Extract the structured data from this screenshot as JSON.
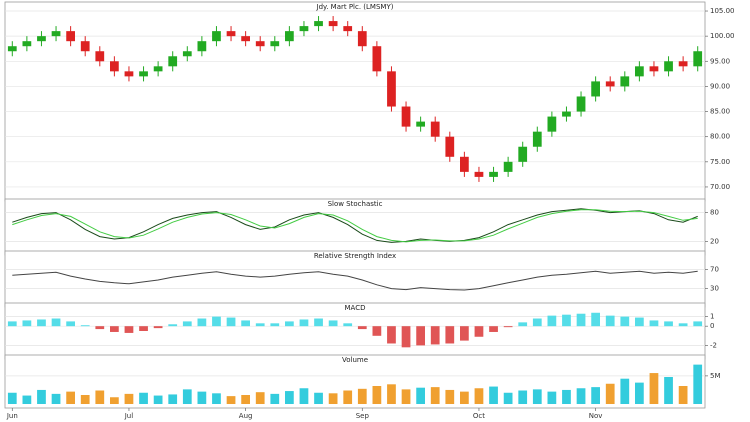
{
  "chart_data": [
    {
      "type": "candlestick",
      "title": "Jdy. Mart Plc. (LMSMY)",
      "categories": [
        "Jun",
        null,
        null,
        null,
        null,
        null,
        null,
        null,
        "Jul",
        null,
        null,
        null,
        null,
        null,
        null,
        null,
        "Aug",
        null,
        null,
        null,
        null,
        null,
        null,
        null,
        "Sep",
        null,
        null,
        null,
        null,
        null,
        null,
        null,
        "Oct",
        null,
        null,
        null,
        null,
        null,
        null,
        null,
        "Nov",
        null,
        null,
        null,
        null,
        null,
        null,
        null
      ],
      "open": [
        97,
        98,
        99,
        100,
        101,
        99,
        97,
        95,
        93,
        92,
        93,
        94,
        96,
        97,
        99,
        101,
        100,
        99,
        98,
        99,
        101,
        102,
        103,
        102,
        101,
        98,
        93,
        86,
        82,
        83,
        80,
        76,
        73,
        72,
        73,
        75,
        78,
        81,
        84,
        85,
        88,
        91,
        90,
        92,
        94,
        93,
        95,
        94
      ],
      "high": [
        99,
        100,
        101,
        102,
        102,
        100,
        98,
        96,
        94,
        94,
        95,
        97,
        98,
        100,
        102,
        102,
        101,
        100,
        100,
        102,
        103,
        104,
        104,
        103,
        102,
        99,
        94,
        87,
        84,
        84,
        81,
        77,
        74,
        74,
        76,
        79,
        82,
        85,
        86,
        89,
        92,
        92,
        93,
        95,
        95,
        96,
        96,
        98
      ],
      "low": [
        96,
        97,
        98,
        99,
        98,
        96,
        94,
        92,
        91,
        91,
        92,
        93,
        95,
        96,
        98,
        99,
        98,
        97,
        97,
        98,
        100,
        101,
        101,
        100,
        97,
        92,
        85,
        81,
        81,
        79,
        75,
        72,
        71,
        71,
        72,
        74,
        77,
        80,
        83,
        84,
        87,
        89,
        89,
        91,
        92,
        92,
        93,
        93
      ],
      "close": [
        98,
        99,
        100,
        101,
        99,
        97,
        95,
        93,
        92,
        93,
        94,
        96,
        97,
        99,
        101,
        100,
        99,
        98,
        99,
        101,
        102,
        103,
        102,
        101,
        98,
        93,
        86,
        82,
        83,
        80,
        76,
        73,
        72,
        73,
        75,
        78,
        81,
        84,
        85,
        88,
        91,
        90,
        92,
        94,
        93,
        95,
        94,
        97
      ],
      "up_color": "#22aa22",
      "down_color": "#dd2222",
      "ylim": [
        68,
        106
      ],
      "yticks": [
        {
          "value": 70,
          "label": "70.00"
        },
        {
          "value": 75,
          "label": "75.00"
        },
        {
          "value": 80,
          "label": "80.00"
        },
        {
          "value": 85,
          "label": "85.00"
        },
        {
          "value": 90,
          "label": "90.00"
        },
        {
          "value": 95,
          "label": "95.00"
        },
        {
          "value": 100,
          "label": "100.00"
        },
        {
          "value": 105,
          "label": "105.00"
        }
      ],
      "grid": true
    },
    {
      "type": "line",
      "title": "Slow Stochastic",
      "series": [
        {
          "color": "#1a4a1a",
          "values": [
            60,
            70,
            78,
            80,
            65,
            45,
            30,
            25,
            28,
            40,
            55,
            68,
            75,
            80,
            82,
            70,
            55,
            45,
            50,
            65,
            75,
            80,
            70,
            55,
            35,
            22,
            18,
            20,
            25,
            22,
            20,
            22,
            28,
            40,
            55,
            65,
            75,
            82,
            85,
            88,
            85,
            80,
            82,
            84,
            78,
            65,
            60,
            72
          ]
        },
        {
          "color": "#44cc44",
          "values": [
            55,
            65,
            74,
            78,
            72,
            56,
            40,
            30,
            27,
            33,
            46,
            60,
            70,
            77,
            80,
            76,
            65,
            52,
            48,
            57,
            70,
            78,
            75,
            63,
            45,
            30,
            22,
            19,
            22,
            23,
            21,
            21,
            25,
            33,
            46,
            58,
            70,
            78,
            83,
            86,
            86,
            83,
            82,
            83,
            80,
            72,
            64,
            68
          ]
        }
      ],
      "ylim": [
        0,
        100
      ],
      "yticks": [
        20,
        80
      ],
      "grid": true
    },
    {
      "type": "line",
      "title": "Relative Strength Index",
      "series": [
        {
          "color": "#444444",
          "values": [
            58,
            60,
            62,
            64,
            56,
            50,
            45,
            42,
            40,
            44,
            48,
            54,
            58,
            62,
            65,
            60,
            56,
            54,
            56,
            60,
            63,
            65,
            60,
            56,
            48,
            38,
            30,
            28,
            32,
            30,
            28,
            27,
            30,
            36,
            42,
            48,
            54,
            58,
            60,
            63,
            66,
            62,
            64,
            66,
            62,
            64,
            62,
            66
          ]
        }
      ],
      "ylim": [
        0,
        100
      ],
      "yticks": [
        30,
        70
      ],
      "grid": true
    },
    {
      "type": "bar",
      "title": "MACD",
      "values": [
        0.5,
        0.6,
        0.7,
        0.8,
        0.5,
        0.1,
        -0.3,
        -0.6,
        -0.7,
        -0.5,
        -0.2,
        0.2,
        0.5,
        0.8,
        1.0,
        0.9,
        0.6,
        0.3,
        0.3,
        0.5,
        0.7,
        0.8,
        0.6,
        0.3,
        -0.3,
        -1.0,
        -1.8,
        -2.2,
        -2.0,
        -1.9,
        -1.8,
        -1.5,
        -1.1,
        -0.6,
        -0.1,
        0.4,
        0.8,
        1.1,
        1.2,
        1.3,
        1.4,
        1.1,
        1.0,
        0.9,
        0.6,
        0.5,
        0.3,
        0.5
      ],
      "up_color": "#55dde8",
      "down_color": "#e05555",
      "ylim": [
        -3,
        2
      ],
      "yticks": [
        -2,
        0,
        1
      ],
      "grid": true
    },
    {
      "type": "volume",
      "title": "Volume",
      "values": [
        2,
        1.5,
        2.5,
        1.8,
        2.2,
        1.6,
        2.4,
        1.2,
        1.8,
        2.0,
        1.5,
        1.7,
        2.6,
        2.2,
        1.9,
        1.4,
        1.6,
        2.1,
        1.8,
        2.3,
        2.8,
        2.0,
        1.9,
        2.4,
        2.7,
        3.2,
        3.5,
        2.6,
        2.9,
        3.0,
        2.5,
        2.2,
        2.8,
        3.1,
        2.0,
        2.4,
        2.6,
        2.2,
        2.5,
        2.8,
        3.0,
        3.6,
        4.5,
        3.8,
        5.5,
        4.8,
        3.2,
        7.0
      ],
      "up_color": "#33ccdd",
      "down_color": "#f0a030",
      "ylim": [
        0,
        8
      ],
      "yticks": [
        {
          "value": 5,
          "label": "5M"
        }
      ],
      "grid": true
    }
  ]
}
